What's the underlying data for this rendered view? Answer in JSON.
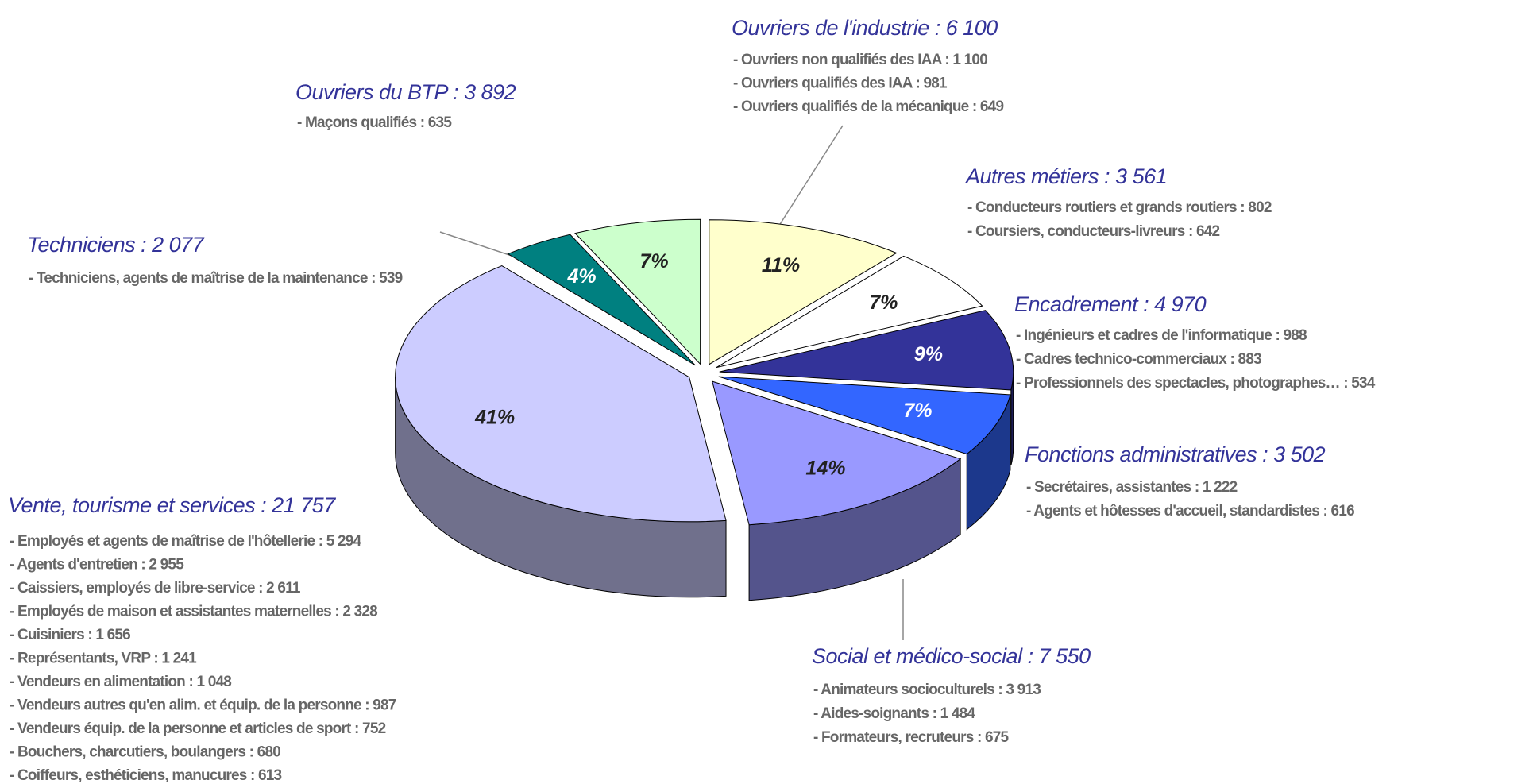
{
  "chart_data": {
    "type": "pie",
    "categories": [
      "Ouvriers de l'industrie : 6 100",
      "Autres métiers : 3 561",
      "Encadrement : 4 970",
      "Fonctions administratives : 3 502",
      "Social et médico-social : 7 550",
      "Vente, tourisme et services : 21 757",
      "Techniciens : 2 077",
      "Ouvriers du BTP : 3 892"
    ],
    "values": [
      11,
      7,
      9,
      7,
      14,
      41,
      4,
      7
    ],
    "value_labels": [
      "11%",
      "7%",
      "9%",
      "7%",
      "14%",
      "41%",
      "4%",
      "7%"
    ],
    "colors": [
      "#ffffcc",
      "#ffffff",
      "#333399",
      "#3366ff",
      "#9999ff",
      "#ccccff",
      "#008080",
      "#ccffcc"
    ],
    "details": [
      [
        "- Ouvriers non qualifiés des IAA : 1 100",
        "- Ouvriers qualifiés des IAA : 981",
        "- Ouvriers qualifiés de la mécanique : 649"
      ],
      [
        "- Conducteurs routiers et grands routiers  : 802",
        "- Coursiers, conducteurs-livreurs  : 642"
      ],
      [
        "- Ingénieurs et cadres de l'informatique : 988",
        "- Cadres technico-commerciaux : 883",
        "- Professionnels des spectacles, photographes… : 534"
      ],
      [
        "- Secrétaires, assistantes : 1 222",
        "- Agents et hôtesses d'accueil, standardistes : 616"
      ],
      [
        "- Animateurs socioculturels : 3 913",
        "- Aides-soignants : 1 484",
        "- Formateurs, recruteurs : 675"
      ],
      [
        "- Employés et agents de maîtrise de l'hôtellerie : 5 294",
        "- Agents d'entretien : 2 955",
        "- Caissiers, employés de libre-service : 2 611",
        "- Employés de maison et assistantes maternelles : 2 328",
        "- Cuisiniers : 1 656",
        "- Représentants, VRP : 1 241",
        "- Vendeurs en alimentation : 1 048",
        "- Vendeurs autres qu'en alim. et équip. de la personne : 987",
        "- Vendeurs équip. de la personne et articles de sport : 752",
        "- Bouchers, charcutiers, boulangers : 680",
        "- Coiffeurs, esthéticiens, manucures : 613"
      ],
      [
        "- Techniciens, agents de maîtrise de la maintenance  : 539"
      ],
      [
        "- Maçons qualifiés  : 635"
      ]
    ]
  }
}
